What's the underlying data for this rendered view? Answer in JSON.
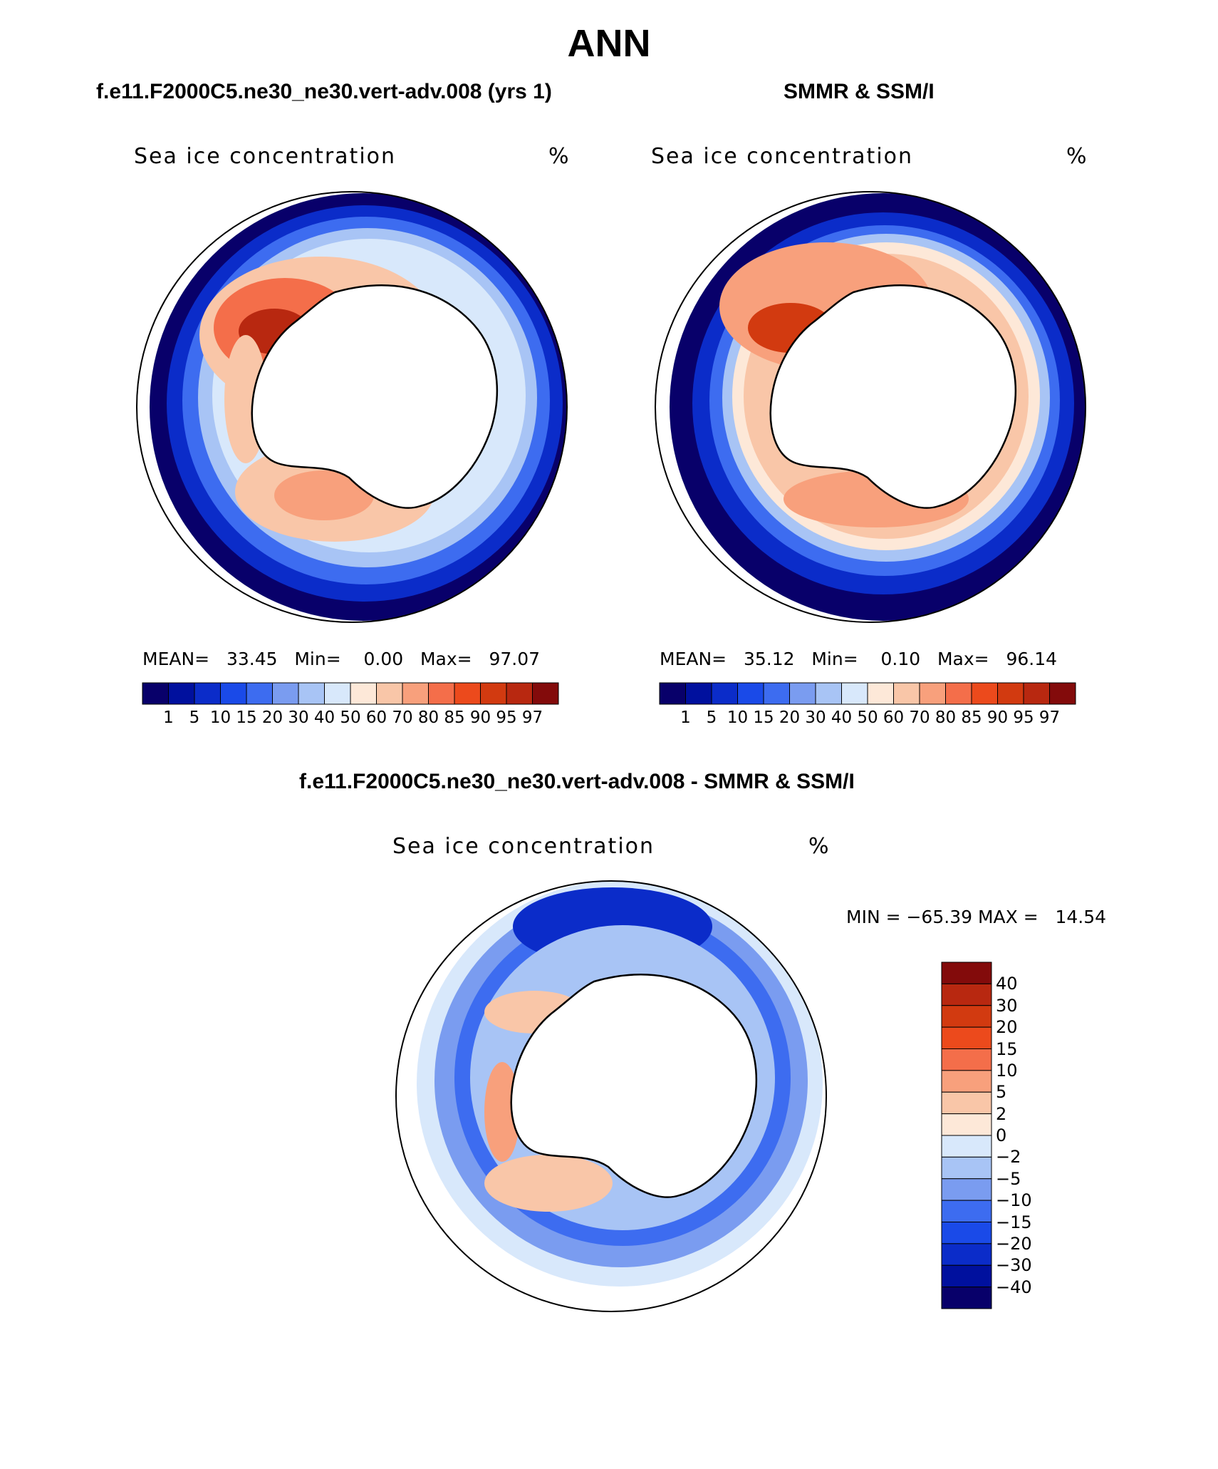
{
  "title": "ANN",
  "panels": {
    "left": {
      "header": "f.e11.F2000C5.ne30_ne30.vert-adv.008 (yrs 1)",
      "variable": "Sea ice concentration",
      "unit": "%",
      "stats": "MEAN=   33.45   Min=    0.00   Max=   97.07"
    },
    "right": {
      "header": "SMMR & SSM/I",
      "variable": "Sea ice concentration",
      "unit": "%",
      "stats": "MEAN=   35.12   Min=    0.10   Max=   96.14"
    },
    "diff": {
      "header": "f.e11.F2000C5.ne30_ne30.vert-adv.008 - SMMR & SSM/I",
      "variable": "Sea ice concentration",
      "unit": "%",
      "stats": "MIN = −65.39 MAX =   14.54"
    }
  },
  "colorbar_abs": {
    "levels": [
      "1",
      "5",
      "10",
      "15",
      "20",
      "30",
      "40",
      "50",
      "60",
      "70",
      "80",
      "85",
      "90",
      "95",
      "97"
    ],
    "colors": [
      "#08006a",
      "#00109e",
      "#0b2cc9",
      "#1a4ae8",
      "#3d6cf0",
      "#7a9cf0",
      "#a8c4f5",
      "#d8e8fb",
      "#fde8d8",
      "#f9c6a8",
      "#f8a07c",
      "#f46e4a",
      "#ec4a1c",
      "#d23a10",
      "#b82810",
      "#830b0b"
    ]
  },
  "colorbar_diff": {
    "levels": [
      "40",
      "30",
      "20",
      "15",
      "10",
      "5",
      "2",
      "0",
      "−2",
      "−5",
      "−10",
      "−15",
      "−20",
      "−30",
      "−40"
    ],
    "colors": [
      "#830b0b",
      "#b82810",
      "#d23a10",
      "#ec4a1c",
      "#f46e4a",
      "#f8a07c",
      "#f9c6a8",
      "#fde8d8",
      "#d8e8fb",
      "#a8c4f5",
      "#7a9cf0",
      "#3d6cf0",
      "#1a4ae8",
      "#0b2cc9",
      "#00109e",
      "#08006a"
    ]
  }
}
